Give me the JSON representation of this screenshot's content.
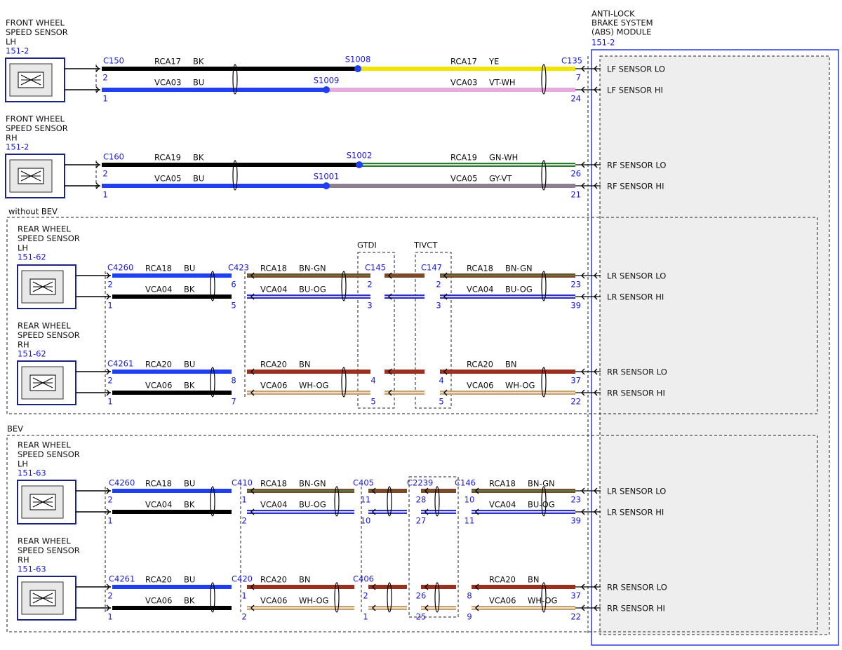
{
  "module": {
    "title": [
      "ANTI-LOCK",
      "BRAKE SYSTEM",
      "(ABS) MODULE"
    ],
    "ref": "151-2"
  },
  "sections": [
    "without BEV",
    "BEV"
  ],
  "variants": [
    "GTDI",
    "TIVCT"
  ],
  "harnesses": [
    {
      "sensor": [
        "FRONT WHEEL",
        "SPEED SENSOR",
        "LH"
      ],
      "ref": "151-2",
      "connectors": [
        {
          "name": "C150",
          "pins": [
            "2",
            "1"
          ]
        },
        {
          "name": "C135",
          "pins": [
            "7",
            "24"
          ]
        }
      ],
      "splices": [
        "S1008",
        "S1009"
      ],
      "wires": [
        [
          {
            "circuit": "RCA17",
            "code": "BK",
            "color": "#000000"
          },
          {
            "circuit": "RCA17",
            "code": "YE",
            "color": "#f0e400"
          }
        ],
        [
          {
            "circuit": "VCA03",
            "code": "BU",
            "color": "#1f3ff0"
          },
          {
            "circuit": "VCA03",
            "code": "VT-WH",
            "color": "#e8a8e0"
          }
        ]
      ],
      "signals": [
        "LF SENSOR LO",
        "LF SENSOR HI"
      ]
    },
    {
      "sensor": [
        "FRONT WHEEL",
        "SPEED SENSOR",
        "RH"
      ],
      "ref": "151-2",
      "connectors": [
        {
          "name": "C160",
          "pins": [
            "2",
            "1"
          ]
        },
        {
          "pins": [
            "26",
            "21"
          ]
        }
      ],
      "splices": [
        "S1002",
        "S1001"
      ],
      "wires": [
        [
          {
            "circuit": "RCA19",
            "code": "BK",
            "color": "#000000"
          },
          {
            "circuit": "RCA19",
            "code": "GN-WH",
            "color": "#2e7d2e",
            "stripe": "#ffffff"
          }
        ],
        [
          {
            "circuit": "VCA05",
            "code": "BU",
            "color": "#1f3ff0"
          },
          {
            "circuit": "VCA05",
            "code": "GY-VT",
            "color": "#8c7f90"
          }
        ]
      ],
      "signals": [
        "RF SENSOR LO",
        "RF SENSOR HI"
      ]
    },
    {
      "sensor": [
        "REAR WHEEL",
        "SPEED SENSOR",
        "LH"
      ],
      "ref": "151-62",
      "connectors": [
        {
          "name": "C4260",
          "pins": [
            "2",
            "1"
          ]
        },
        {
          "name": "C423",
          "pins": [
            "6",
            "5"
          ]
        },
        {
          "name": "C145",
          "pins": [
            "2",
            "3"
          ]
        },
        {
          "name": "C147",
          "pins": [
            "2",
            "3"
          ]
        },
        {
          "pins": [
            "23",
            "39"
          ]
        }
      ],
      "wires": [
        [
          {
            "circuit": "RCA18",
            "code": "BU",
            "color": "#1f3ff0"
          },
          {
            "circuit": "RCA18",
            "code": "BN-GN",
            "color": "#7a4a2a",
            "stripe": "#4a8a4a"
          },
          {
            "color": "#7a4a2a"
          },
          {
            "circuit": "RCA18",
            "code": "BN-GN",
            "color": "#7a4a2a",
            "stripe": "#4a8a4a"
          }
        ],
        [
          {
            "circuit": "VCA04",
            "code": "BK",
            "color": "#000000"
          },
          {
            "circuit": "VCA04",
            "code": "BU-OG",
            "color": "#3030c0",
            "stripe": "#ffffff"
          },
          {
            "color": "#3030c0",
            "stripe": "#ffffff"
          },
          {
            "circuit": "VCA04",
            "code": "BU-OG",
            "color": "#3030c0",
            "stripe": "#ffffff"
          }
        ]
      ],
      "signals": [
        "LR SENSOR LO",
        "LR SENSOR HI"
      ]
    },
    {
      "sensor": [
        "REAR WHEEL",
        "SPEED SENSOR",
        "RH"
      ],
      "ref": "151-62",
      "connectors": [
        {
          "name": "C4261",
          "pins": [
            "2",
            "1"
          ]
        },
        {
          "pins": [
            "8",
            "7"
          ]
        },
        {
          "pins": [
            "4",
            "5"
          ]
        },
        {
          "pins": [
            "4",
            "5"
          ]
        },
        {
          "pins": [
            "37",
            "22"
          ]
        }
      ],
      "wires": [
        [
          {
            "circuit": "RCA20",
            "code": "BU",
            "color": "#1f3ff0"
          },
          {
            "circuit": "RCA20",
            "code": "BN",
            "color": "#9a3020"
          },
          {
            "color": "#9a3020"
          },
          {
            "circuit": "RCA20",
            "code": "BN",
            "color": "#9a3020"
          }
        ],
        [
          {
            "circuit": "VCA06",
            "code": "BK",
            "color": "#000000"
          },
          {
            "circuit": "VCA06",
            "code": "WH-OG",
            "color": "#c8a070",
            "stripe": "#fbf4e8"
          },
          {
            "color": "#c8a070",
            "stripe": "#fbf4e8"
          },
          {
            "circuit": "VCA06",
            "code": "WH-OG",
            "color": "#c8a070",
            "stripe": "#fbf4e8"
          }
        ]
      ],
      "signals": [
        "RR SENSOR LO",
        "RR SENSOR HI"
      ]
    },
    {
      "sensor": [
        "REAR WHEEL",
        "SPEED SENSOR",
        "LH"
      ],
      "ref": "151-63",
      "connectors": [
        {
          "name": "C4260",
          "pins": [
            "2",
            "1"
          ]
        },
        {
          "name": "C410",
          "pins": [
            "1",
            "2"
          ]
        },
        {
          "name": "C405",
          "pins": [
            "11",
            "10"
          ]
        },
        {
          "name": "C2239",
          "pins": [
            "28",
            "27"
          ]
        },
        {
          "name": "C146",
          "pins": [
            "10",
            "11"
          ]
        },
        {
          "pins": [
            "23",
            "39"
          ]
        }
      ],
      "wires": [
        [
          {
            "circuit": "RCA18",
            "code": "BU",
            "color": "#1f3ff0"
          },
          {
            "circuit": "RCA18",
            "code": "BN-GN",
            "color": "#7a4a2a",
            "stripe": "#4a8a4a"
          },
          {
            "color": "#7a4a2a"
          },
          {
            "color": "#7a4a2a"
          },
          {
            "circuit": "RCA18",
            "code": "BN-GN",
            "color": "#7a4a2a",
            "stripe": "#4a8a4a"
          }
        ],
        [
          {
            "circuit": "VCA04",
            "code": "BK",
            "color": "#000000"
          },
          {
            "circuit": "VCA04",
            "code": "BU-OG",
            "color": "#3030c0",
            "stripe": "#ffffff"
          },
          {
            "color": "#3030c0",
            "stripe": "#ffffff"
          },
          {
            "color": "#3030c0",
            "stripe": "#ffffff"
          },
          {
            "circuit": "VCA04",
            "code": "BU-OG",
            "color": "#3030c0",
            "stripe": "#ffffff"
          }
        ]
      ],
      "signals": [
        "LR SENSOR LO",
        "LR SENSOR HI"
      ]
    },
    {
      "sensor": [
        "REAR WHEEL",
        "SPEED SENSOR",
        "RH"
      ],
      "ref": "151-63",
      "connectors": [
        {
          "name": "C4261",
          "pins": [
            "2",
            "1"
          ]
        },
        {
          "name": "C420",
          "pins": [
            "1",
            "2"
          ]
        },
        {
          "name": "C406",
          "pins": [
            "2",
            "1"
          ]
        },
        {
          "pins": [
            "26",
            "25"
          ]
        },
        {
          "pins": [
            "8",
            "9"
          ]
        },
        {
          "pins": [
            "37",
            "22"
          ]
        }
      ],
      "wires": [
        [
          {
            "circuit": "RCA20",
            "code": "BU",
            "color": "#1f3ff0"
          },
          {
            "circuit": "RCA20",
            "code": "BN",
            "color": "#9a3020"
          },
          {
            "color": "#9a3020"
          },
          {
            "color": "#9a3020"
          },
          {
            "circuit": "RCA20",
            "code": "BN",
            "color": "#9a3020"
          }
        ],
        [
          {
            "circuit": "VCA06",
            "code": "BK",
            "color": "#000000"
          },
          {
            "circuit": "VCA06",
            "code": "WH-OG",
            "color": "#c8a070",
            "stripe": "#fbf4e8"
          },
          {
            "color": "#c8a070",
            "stripe": "#fbf4e8"
          },
          {
            "color": "#c8a070",
            "stripe": "#fbf4e8"
          },
          {
            "circuit": "VCA06",
            "code": "WH-OG",
            "color": "#c8a070",
            "stripe": "#fbf4e8"
          }
        ]
      ],
      "signals": [
        "RR SENSOR LO",
        "RR SENSOR HI"
      ]
    }
  ]
}
